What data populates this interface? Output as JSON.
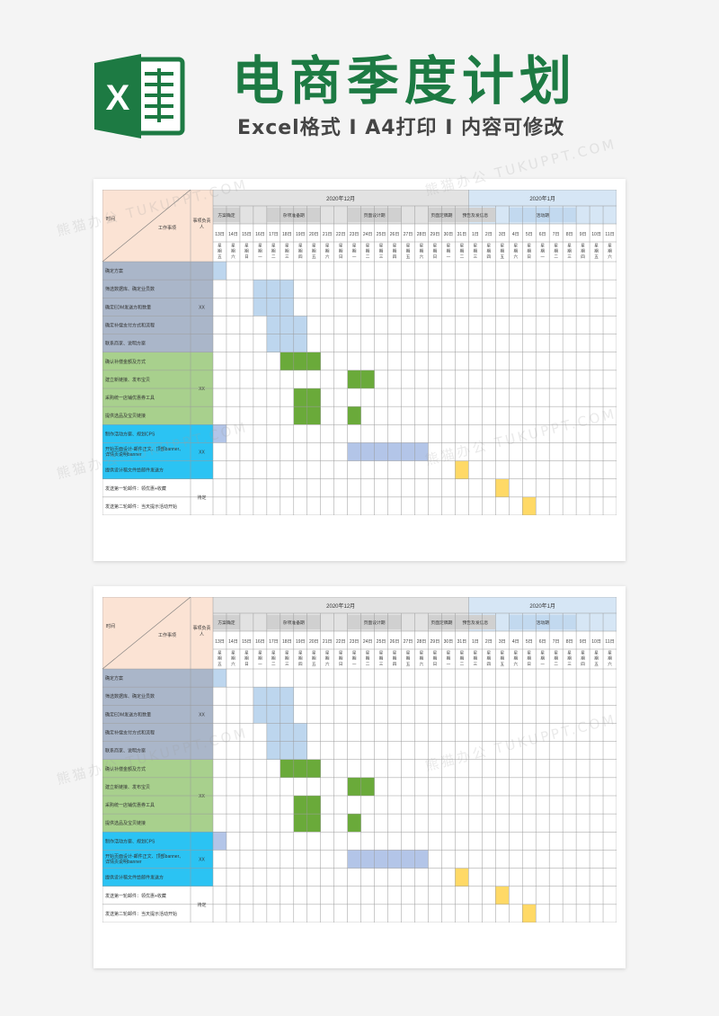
{
  "header": {
    "logo_letter": "X",
    "title": "电商季度计划",
    "subtitle": "Excel格式 I A4打印 I 内容可修改"
  },
  "colors": {
    "title_green": "#1d7a43",
    "header_peach": "#fbe3d4",
    "header_gray": "#e2e2e2",
    "header_blue": "#d6e6f5",
    "group1": "#aab6c9",
    "group2": "#a8d08d",
    "group3": "#2bc3f3",
    "bar_lightblue": "#bdd6ee",
    "bar_green": "#6aaa3a",
    "bar_periwinkle": "#b3c5e8",
    "bar_yellow": "#ffd966"
  },
  "sheet": {
    "corner_left": "时间",
    "corner_right": "工作事项",
    "owner_header": "事项负责人",
    "month_dec": "2020年12月",
    "month_jan": "2020年1月",
    "phases": [
      {
        "label": "方案确定",
        "start": 0,
        "span": 2
      },
      {
        "label": "杂项准备期",
        "start": 4,
        "span": 4
      },
      {
        "label": "页面设计期",
        "start": 10,
        "span": 4
      },
      {
        "label": "页面定稿期",
        "start": 16,
        "span": 2
      },
      {
        "label": "预告及发信息",
        "start": 18,
        "span": 3
      },
      {
        "label": "活动期",
        "start": 22,
        "span": 5
      }
    ],
    "dates": [
      "13日",
      "14日",
      "15日",
      "16日",
      "17日",
      "18日",
      "19日",
      "20日",
      "21日",
      "22日",
      "23日",
      "24日",
      "25日",
      "26日",
      "27日",
      "28日",
      "29日",
      "30日",
      "31日",
      "1日",
      "2日",
      "3日",
      "4日",
      "5日",
      "6日",
      "7日",
      "8日",
      "9日",
      "10日",
      "11日"
    ],
    "weekdays": [
      "星期五",
      "星期六",
      "星期日",
      "星期一",
      "星期二",
      "星期三",
      "星期四",
      "星期五",
      "星期六",
      "星期日",
      "星期一",
      "星期二",
      "星期三",
      "星期四",
      "星期五",
      "星期六",
      "星期日",
      "星期一",
      "星期二",
      "星期三",
      "星期四",
      "星期五",
      "星期六",
      "星期日",
      "星期一",
      "星期二",
      "星期三",
      "星期四",
      "星期五",
      "星期六"
    ],
    "tasks": [
      {
        "label": "确定方案",
        "group": 1
      },
      {
        "label": "筛选数据库、确定业员数",
        "group": 1
      },
      {
        "label": "确定EDM发送方和数量",
        "group": 1
      },
      {
        "label": "确定补偿支付方式和流程",
        "group": 1
      },
      {
        "label": "联系商家、说明方案",
        "group": 1
      },
      {
        "label": "确认补偿金额及方式",
        "group": 2
      },
      {
        "label": "建立新链接、发布宝贝",
        "group": 2
      },
      {
        "label": "采购统一店铺优惠券工具",
        "group": 2
      },
      {
        "label": "提供选品及宝贝链接",
        "group": 2
      },
      {
        "label": "制作活动方案、规划CPS",
        "group": 3
      },
      {
        "label": "开始页面设计-邮件正文、顶部banner、详情页说明banner",
        "group": 3
      },
      {
        "label": "提供设计稿文件给邮件发送方",
        "group": 3
      },
      {
        "label": "发送第一轮邮件：领优惠+收藏",
        "group": 4
      },
      {
        "label": "发送第二轮邮件：当天提示活动开始",
        "group": 4
      }
    ],
    "owners": [
      {
        "label": "XX",
        "row_start": 0,
        "row_span": 5
      },
      {
        "label": "XX",
        "row_start": 5,
        "row_span": 4
      },
      {
        "label": "XX",
        "row_start": 9,
        "row_span": 3
      },
      {
        "label": "待定",
        "row_start": 12,
        "row_span": 2
      }
    ],
    "bars": [
      {
        "row": 0,
        "col": 0,
        "span": 1,
        "color": "lightblue"
      },
      {
        "row": 1,
        "col": 3,
        "span": 3,
        "color": "lightblue"
      },
      {
        "row": 2,
        "col": 3,
        "span": 3,
        "color": "lightblue"
      },
      {
        "row": 3,
        "col": 4,
        "span": 3,
        "color": "lightblue"
      },
      {
        "row": 4,
        "col": 4,
        "span": 3,
        "color": "lightblue"
      },
      {
        "row": 5,
        "col": 5,
        "span": 3,
        "color": "green"
      },
      {
        "row": 6,
        "col": 10,
        "span": 2,
        "color": "green"
      },
      {
        "row": 7,
        "col": 6,
        "span": 2,
        "color": "green"
      },
      {
        "row": 8,
        "col": 6,
        "span": 2,
        "color": "green"
      },
      {
        "row": 8,
        "col": 10,
        "span": 1,
        "color": "green"
      },
      {
        "row": 9,
        "col": 0,
        "span": 1,
        "color": "periwinkle"
      },
      {
        "row": 10,
        "col": 10,
        "span": 6,
        "color": "periwinkle"
      },
      {
        "row": 11,
        "col": 18,
        "span": 1,
        "color": "yellow"
      },
      {
        "row": 12,
        "col": 21,
        "span": 1,
        "color": "yellow"
      },
      {
        "row": 13,
        "col": 23,
        "span": 1,
        "color": "yellow"
      }
    ]
  }
}
